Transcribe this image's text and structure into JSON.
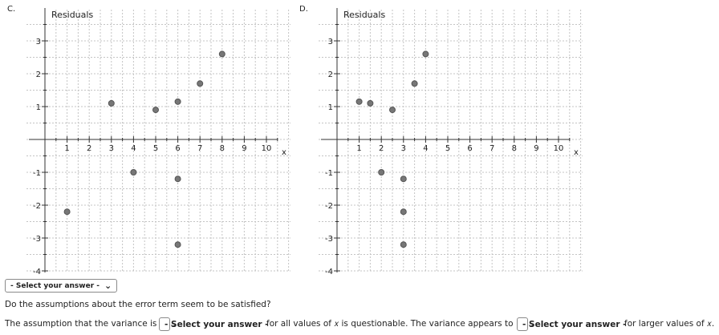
{
  "chart_data": [
    {
      "type": "scatter",
      "panel_label": "C.",
      "ylabel": "Residuals",
      "xlabel": "x",
      "xlim": [
        0,
        10
      ],
      "ylim": [
        -4,
        3
      ],
      "xticks": [
        1,
        2,
        3,
        4,
        5,
        6,
        7,
        8,
        9,
        10
      ],
      "yticks": [
        -4,
        -3,
        -2,
        -1,
        1,
        2,
        3
      ],
      "grid": true,
      "points": [
        {
          "x": 1,
          "y": -2.2
        },
        {
          "x": 3,
          "y": 1.1
        },
        {
          "x": 4,
          "y": -1.0
        },
        {
          "x": 5,
          "y": 0.9
        },
        {
          "x": 6,
          "y": 1.15
        },
        {
          "x": 6,
          "y": -1.2
        },
        {
          "x": 6,
          "y": -3.2
        },
        {
          "x": 7,
          "y": 1.7
        },
        {
          "x": 8,
          "y": 2.6
        }
      ]
    },
    {
      "type": "scatter",
      "panel_label": "D.",
      "ylabel": "Residuals",
      "xlabel": "x",
      "xlim": [
        0,
        10
      ],
      "ylim": [
        -4,
        3
      ],
      "xticks": [
        1,
        2,
        3,
        4,
        5,
        6,
        7,
        8,
        9,
        10
      ],
      "yticks": [
        -4,
        -3,
        -2,
        -1,
        1,
        2,
        3
      ],
      "grid": true,
      "points": [
        {
          "x": 1,
          "y": 1.15
        },
        {
          "x": 1.5,
          "y": 1.1
        },
        {
          "x": 2,
          "y": -1.0
        },
        {
          "x": 2.5,
          "y": 0.9
        },
        {
          "x": 3,
          "y": -1.2
        },
        {
          "x": 3,
          "y": -2.2
        },
        {
          "x": 3,
          "y": -3.2
        },
        {
          "x": 3.5,
          "y": 1.7
        },
        {
          "x": 4,
          "y": 2.6
        }
      ]
    }
  ],
  "colors": {
    "point": "#777777",
    "point_stroke": "#555555",
    "grid": "#c4c4c4",
    "axis": "#333333"
  },
  "select_main": {
    "label": "- Select your answer -"
  },
  "question": "Do the assumptions about the error term seem to be satisfied?",
  "line3": {
    "part1": "The assumption that the variance is",
    "select1": "- Select your answer -",
    "part2": "for all values of 𝑥 is questionable. The variance appears to",
    "select2": "- Select your answer -",
    "part3": "for larger values of 𝑥."
  }
}
